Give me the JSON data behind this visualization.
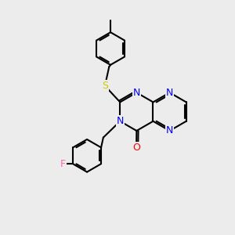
{
  "background_color": "#ececec",
  "figsize": [
    3.0,
    3.0
  ],
  "dpi": 100,
  "atom_colors": {
    "N": "#0000ff",
    "O": "#ff0000",
    "S": "#cccc00",
    "F": "#ff69b4"
  },
  "bond_color": "#000000",
  "bond_width": 1.5,
  "font_size": 9
}
